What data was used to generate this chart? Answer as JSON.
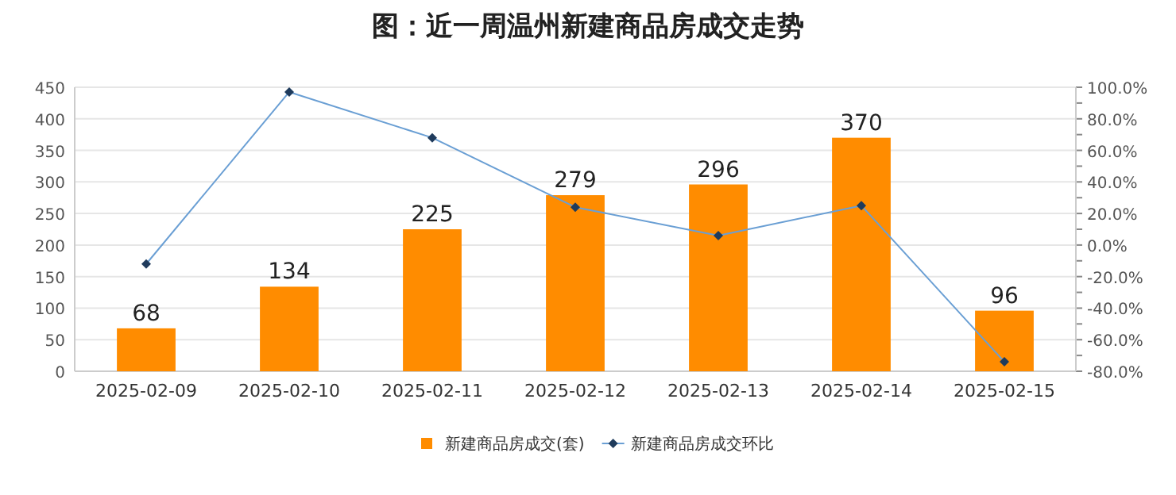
{
  "chart_data": {
    "type": "bar",
    "title": "图：近一周温州新建商品房成交走势",
    "categories": [
      "2025-02-09",
      "2025-02-10",
      "2025-02-11",
      "2025-02-12",
      "2025-02-13",
      "2025-02-14",
      "2025-02-15"
    ],
    "series": [
      {
        "name": "新建商品房成交(套)",
        "color": "#ff8c00",
        "values": [
          68,
          134,
          225,
          279,
          296,
          370,
          96
        ],
        "value_labels": [
          "68",
          "134",
          "225",
          "279",
          "296",
          "370",
          "96"
        ]
      },
      {
        "name": "新建商品房成交环比",
        "type": "line",
        "axis": "y2",
        "color": "#6a9fd4",
        "marker": "diamond",
        "values": [
          -12,
          97,
          68,
          24,
          6,
          25,
          -74
        ]
      }
    ],
    "ylim": [
      0,
      450
    ],
    "yticks": [
      0,
      50,
      100,
      150,
      200,
      250,
      300,
      350,
      400,
      450
    ],
    "y2lim": [
      -80,
      100
    ],
    "y2ticks": [
      {
        "value": -80,
        "label": "-80.0%"
      },
      {
        "value": -70,
        "label": null
      },
      {
        "value": -60,
        "label": "-60.0%"
      },
      {
        "value": -50,
        "label": null
      },
      {
        "value": -40,
        "label": "-40.0%"
      },
      {
        "value": -30,
        "label": null
      },
      {
        "value": -20,
        "label": "-20.0%"
      },
      {
        "value": -10,
        "label": null
      },
      {
        "value": 0,
        "label": "0.0%"
      },
      {
        "value": 10,
        "label": null
      },
      {
        "value": 20,
        "label": "20.0%"
      },
      {
        "value": 30,
        "label": null
      },
      {
        "value": 40,
        "label": "40.0%"
      },
      {
        "value": 50,
        "label": null
      },
      {
        "value": 60,
        "label": "60.0%"
      },
      {
        "value": 70,
        "label": null
      },
      {
        "value": 80,
        "label": "80.0%"
      },
      {
        "value": 90,
        "label": null
      },
      {
        "value": 100,
        "label": "100.0%"
      }
    ],
    "grid": "y",
    "legend": "bottom"
  }
}
